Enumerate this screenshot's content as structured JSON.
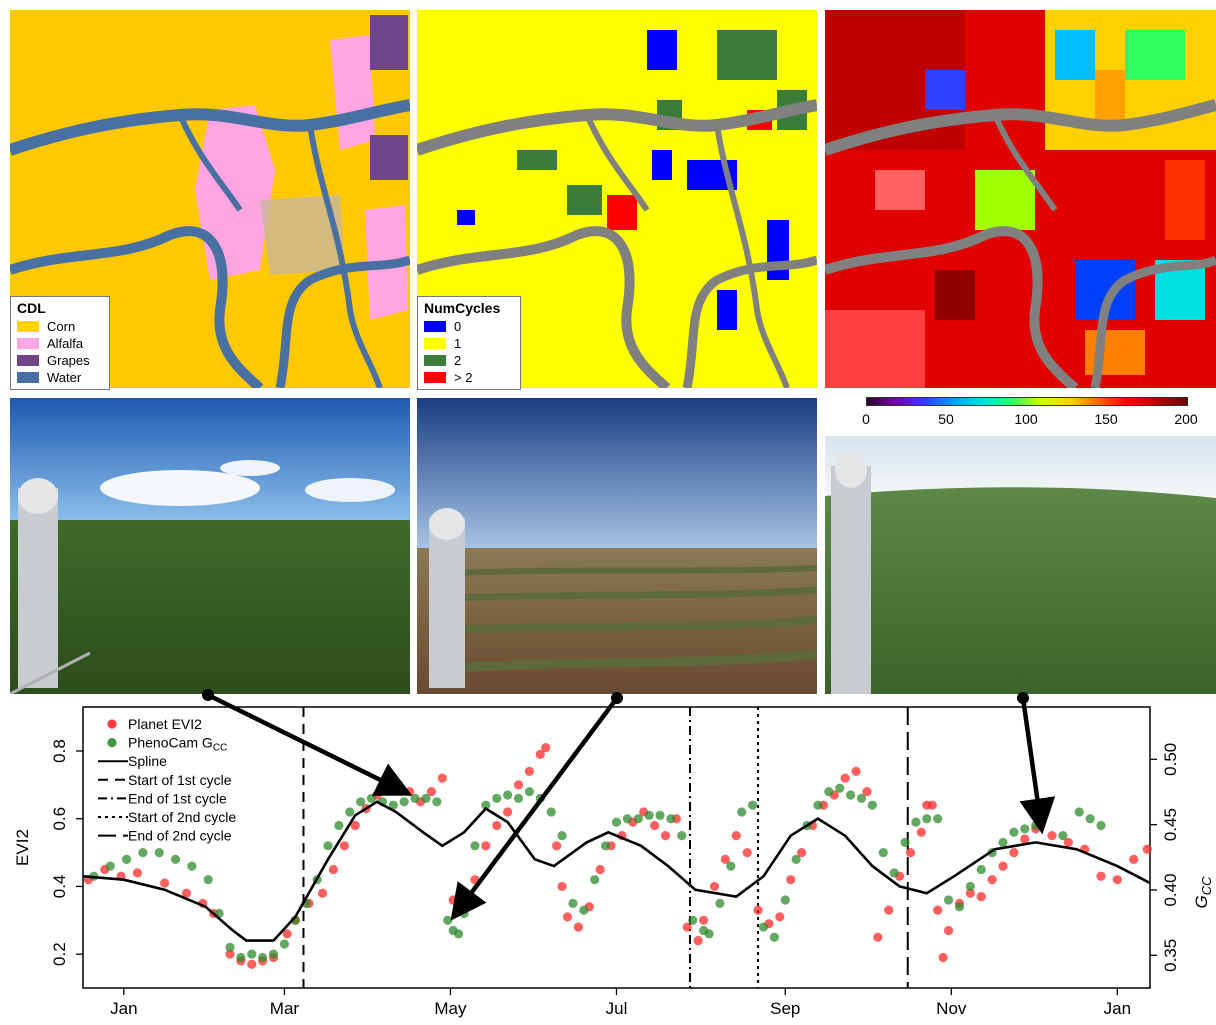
{
  "maps": {
    "cdl_legend": {
      "title": "CDL",
      "items": [
        {
          "label": "Corn",
          "color": "#ffd300"
        },
        {
          "label": "Alfalfa",
          "color": "#ffa5e2"
        },
        {
          "label": "Grapes",
          "color": "#704489"
        },
        {
          "label": "Water",
          "color": "#4970a3"
        }
      ]
    },
    "cycles_legend": {
      "title": "NumCycles",
      "items": [
        {
          "label": "0",
          "color": "#0000ff"
        },
        {
          "label": "1",
          "color": "#ffff00"
        },
        {
          "label": "2",
          "color": "#3a7d3a"
        },
        {
          "label": "> 2",
          "color": "#ff0000"
        }
      ]
    },
    "colorbar": {
      "ticks": [
        "0",
        "50",
        "100",
        "150",
        "200"
      ]
    }
  },
  "chart_data": {
    "type": "scatter",
    "xlabel": "",
    "ylabel": "EVI2",
    "ylabel_right": "G_CC",
    "x_ticks": [
      "Jan",
      "Mar",
      "May",
      "Jul",
      "Sep",
      "Nov",
      "Jan"
    ],
    "x_tick_days": [
      15,
      74,
      135,
      196,
      258,
      319,
      380
    ],
    "xlim": [
      0,
      392
    ],
    "ylim": [
      0.1,
      0.93
    ],
    "y_ticks": [
      0.2,
      0.4,
      0.6,
      0.8
    ],
    "y_right_ticks": [
      0.35,
      0.4,
      0.45,
      0.5
    ],
    "y_right_lim": [
      0.325,
      0.54
    ],
    "legend": {
      "position": "top-left",
      "entries": [
        {
          "label": "Planet EVI2",
          "kind": "point",
          "color": "#ff2a2a"
        },
        {
          "label": "PhenoCam G",
          "sub": "CC",
          "kind": "point",
          "color": "#2e8b2e"
        },
        {
          "label": "Spline",
          "kind": "solid"
        },
        {
          "label": "Start of 1st cycle",
          "kind": "dash"
        },
        {
          "label": "End of  1st cycle",
          "kind": "dashdot"
        },
        {
          "label": "Start of 2nd cycle",
          "kind": "dot"
        },
        {
          "label": "End of  2nd cycle",
          "kind": "longdash"
        }
      ]
    },
    "vlines": [
      {
        "day": 81,
        "style": "dash"
      },
      {
        "day": 223,
        "style": "dashdot"
      },
      {
        "day": 248,
        "style": "dot"
      },
      {
        "day": 303,
        "style": "longdash"
      }
    ],
    "spline": [
      [
        0,
        0.43
      ],
      [
        15,
        0.42
      ],
      [
        30,
        0.39
      ],
      [
        45,
        0.34
      ],
      [
        55,
        0.27
      ],
      [
        60,
        0.24
      ],
      [
        70,
        0.24
      ],
      [
        78,
        0.31
      ],
      [
        90,
        0.48
      ],
      [
        100,
        0.61
      ],
      [
        108,
        0.65
      ],
      [
        115,
        0.62
      ],
      [
        125,
        0.56
      ],
      [
        132,
        0.52
      ],
      [
        140,
        0.56
      ],
      [
        148,
        0.63
      ],
      [
        156,
        0.59
      ],
      [
        166,
        0.48
      ],
      [
        173,
        0.46
      ],
      [
        185,
        0.53
      ],
      [
        193,
        0.56
      ],
      [
        205,
        0.52
      ],
      [
        215,
        0.46
      ],
      [
        225,
        0.39
      ],
      [
        240,
        0.37
      ],
      [
        250,
        0.43
      ],
      [
        260,
        0.55
      ],
      [
        270,
        0.6
      ],
      [
        280,
        0.55
      ],
      [
        290,
        0.46
      ],
      [
        300,
        0.4
      ],
      [
        310,
        0.38
      ],
      [
        320,
        0.43
      ],
      [
        335,
        0.51
      ],
      [
        350,
        0.53
      ],
      [
        365,
        0.51
      ],
      [
        380,
        0.46
      ],
      [
        392,
        0.41
      ]
    ],
    "series": [
      {
        "name": "Planet EVI2",
        "color": "#ff2a2a",
        "points": [
          [
            2,
            0.42
          ],
          [
            8,
            0.45
          ],
          [
            14,
            0.43
          ],
          [
            20,
            0.44
          ],
          [
            30,
            0.41
          ],
          [
            38,
            0.38
          ],
          [
            44,
            0.35
          ],
          [
            48,
            0.32
          ],
          [
            54,
            0.2
          ],
          [
            58,
            0.18
          ],
          [
            62,
            0.17
          ],
          [
            66,
            0.18
          ],
          [
            70,
            0.19
          ],
          [
            75,
            0.26
          ],
          [
            78,
            0.3
          ],
          [
            83,
            0.35
          ],
          [
            88,
            0.38
          ],
          [
            92,
            0.45
          ],
          [
            96,
            0.52
          ],
          [
            100,
            0.58
          ],
          [
            104,
            0.63
          ],
          [
            108,
            0.67
          ],
          [
            112,
            0.69
          ],
          [
            116,
            0.7
          ],
          [
            120,
            0.68
          ],
          [
            124,
            0.65
          ],
          [
            128,
            0.68
          ],
          [
            132,
            0.72
          ],
          [
            136,
            0.36
          ],
          [
            138,
            0.33
          ],
          [
            140,
            0.38
          ],
          [
            144,
            0.42
          ],
          [
            148,
            0.52
          ],
          [
            152,
            0.58
          ],
          [
            156,
            0.62
          ],
          [
            160,
            0.7
          ],
          [
            164,
            0.74
          ],
          [
            168,
            0.79
          ],
          [
            170,
            0.81
          ],
          [
            174,
            0.52
          ],
          [
            176,
            0.4
          ],
          [
            178,
            0.31
          ],
          [
            182,
            0.28
          ],
          [
            186,
            0.34
          ],
          [
            190,
            0.45
          ],
          [
            194,
            0.52
          ],
          [
            198,
            0.55
          ],
          [
            202,
            0.59
          ],
          [
            206,
            0.62
          ],
          [
            210,
            0.58
          ],
          [
            214,
            0.55
          ],
          [
            218,
            0.6
          ],
          [
            222,
            0.28
          ],
          [
            226,
            0.24
          ],
          [
            228,
            0.3
          ],
          [
            232,
            0.4
          ],
          [
            236,
            0.48
          ],
          [
            240,
            0.55
          ],
          [
            244,
            0.5
          ],
          [
            248,
            0.33
          ],
          [
            252,
            0.29
          ],
          [
            256,
            0.31
          ],
          [
            260,
            0.42
          ],
          [
            264,
            0.5
          ],
          [
            268,
            0.58
          ],
          [
            272,
            0.64
          ],
          [
            276,
            0.67
          ],
          [
            280,
            0.72
          ],
          [
            284,
            0.74
          ],
          [
            288,
            0.68
          ],
          [
            292,
            0.25
          ],
          [
            296,
            0.33
          ],
          [
            300,
            0.43
          ],
          [
            304,
            0.5
          ],
          [
            308,
            0.56
          ],
          [
            310,
            0.64
          ],
          [
            312,
            0.64
          ],
          [
            314,
            0.33
          ],
          [
            316,
            0.19
          ],
          [
            318,
            0.27
          ],
          [
            322,
            0.35
          ],
          [
            326,
            0.38
          ],
          [
            330,
            0.37
          ],
          [
            334,
            0.42
          ],
          [
            338,
            0.46
          ],
          [
            342,
            0.5
          ],
          [
            346,
            0.54
          ],
          [
            350,
            0.57
          ],
          [
            356,
            0.55
          ],
          [
            362,
            0.53
          ],
          [
            368,
            0.51
          ],
          [
            374,
            0.43
          ],
          [
            380,
            0.42
          ],
          [
            386,
            0.48
          ],
          [
            391,
            0.51
          ]
        ]
      },
      {
        "name": "PhenoCam G",
        "color": "#2e8b2e",
        "points": [
          [
            4,
            0.43
          ],
          [
            10,
            0.46
          ],
          [
            16,
            0.48
          ],
          [
            22,
            0.5
          ],
          [
            28,
            0.5
          ],
          [
            34,
            0.48
          ],
          [
            40,
            0.46
          ],
          [
            46,
            0.42
          ],
          [
            50,
            0.32
          ],
          [
            54,
            0.22
          ],
          [
            58,
            0.19
          ],
          [
            62,
            0.2
          ],
          [
            66,
            0.19
          ],
          [
            70,
            0.2
          ],
          [
            74,
            0.23
          ],
          [
            78,
            0.3
          ],
          [
            82,
            0.35
          ],
          [
            86,
            0.42
          ],
          [
            90,
            0.52
          ],
          [
            94,
            0.58
          ],
          [
            98,
            0.62
          ],
          [
            102,
            0.65
          ],
          [
            106,
            0.66
          ],
          [
            110,
            0.65
          ],
          [
            114,
            0.64
          ],
          [
            118,
            0.65
          ],
          [
            122,
            0.66
          ],
          [
            126,
            0.66
          ],
          [
            130,
            0.65
          ],
          [
            134,
            0.3
          ],
          [
            136,
            0.27
          ],
          [
            138,
            0.26
          ],
          [
            140,
            0.32
          ],
          [
            144,
            0.52
          ],
          [
            148,
            0.64
          ],
          [
            152,
            0.66
          ],
          [
            156,
            0.67
          ],
          [
            160,
            0.66
          ],
          [
            164,
            0.68
          ],
          [
            168,
            0.66
          ],
          [
            172,
            0.62
          ],
          [
            176,
            0.55
          ],
          [
            180,
            0.35
          ],
          [
            184,
            0.33
          ],
          [
            188,
            0.42
          ],
          [
            192,
            0.52
          ],
          [
            196,
            0.59
          ],
          [
            200,
            0.6
          ],
          [
            204,
            0.6
          ],
          [
            208,
            0.61
          ],
          [
            212,
            0.61
          ],
          [
            216,
            0.6
          ],
          [
            220,
            0.55
          ],
          [
            224,
            0.3
          ],
          [
            228,
            0.27
          ],
          [
            230,
            0.26
          ],
          [
            234,
            0.35
          ],
          [
            238,
            0.46
          ],
          [
            242,
            0.62
          ],
          [
            246,
            0.64
          ],
          [
            250,
            0.28
          ],
          [
            254,
            0.25
          ],
          [
            258,
            0.36
          ],
          [
            262,
            0.48
          ],
          [
            266,
            0.58
          ],
          [
            270,
            0.64
          ],
          [
            274,
            0.68
          ],
          [
            278,
            0.69
          ],
          [
            282,
            0.67
          ],
          [
            286,
            0.66
          ],
          [
            290,
            0.64
          ],
          [
            294,
            0.5
          ],
          [
            298,
            0.44
          ],
          [
            302,
            0.53
          ],
          [
            306,
            0.59
          ],
          [
            310,
            0.6
          ],
          [
            314,
            0.6
          ],
          [
            318,
            0.36
          ],
          [
            322,
            0.34
          ],
          [
            326,
            0.4
          ],
          [
            330,
            0.45
          ],
          [
            334,
            0.5
          ],
          [
            338,
            0.53
          ],
          [
            342,
            0.56
          ],
          [
            346,
            0.57
          ],
          [
            350,
            0.58
          ],
          [
            360,
            0.55
          ],
          [
            366,
            0.62
          ],
          [
            370,
            0.6
          ],
          [
            374,
            0.58
          ]
        ]
      }
    ]
  }
}
